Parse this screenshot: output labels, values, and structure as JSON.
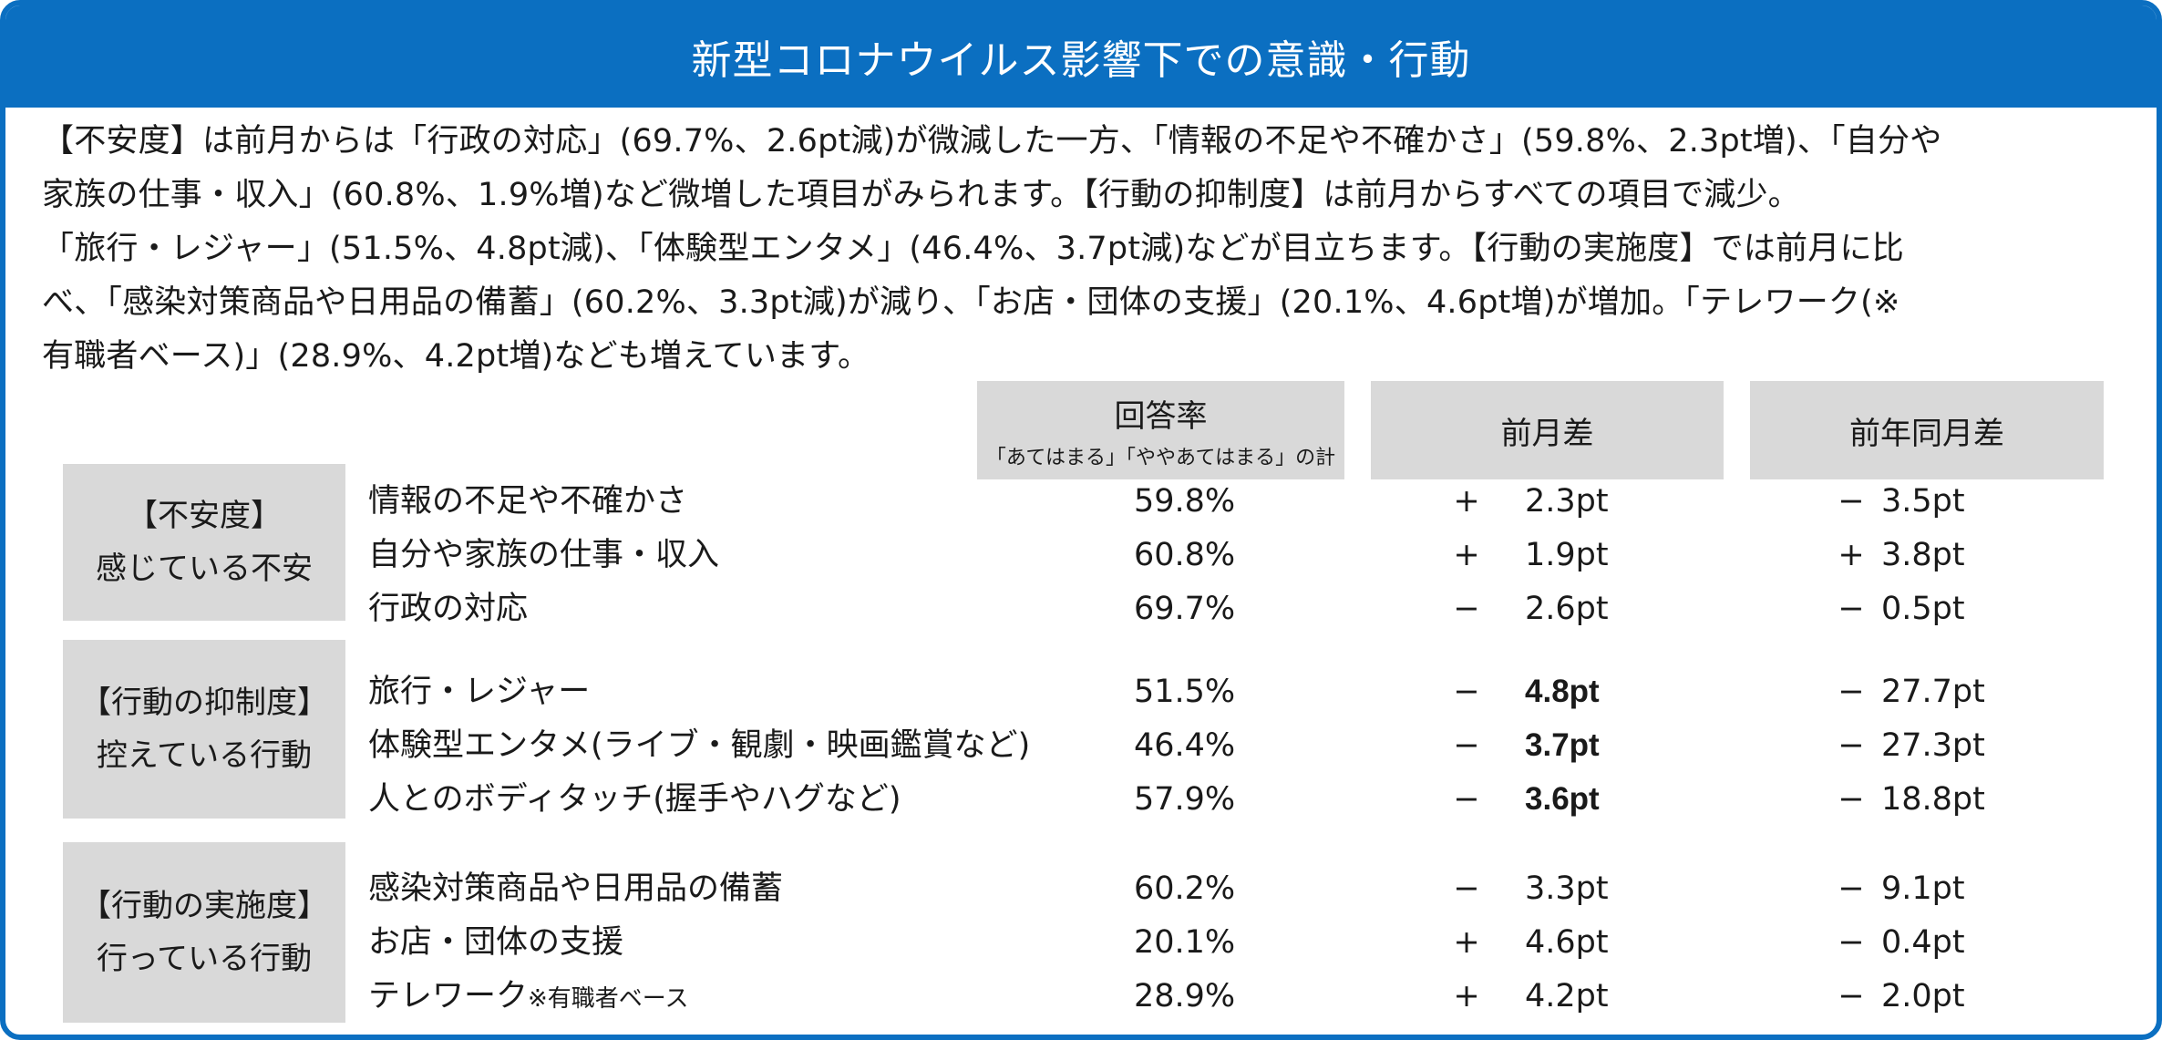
{
  "title": "新型コロナウイルス影響下での意識・行動",
  "summary": "【不安度】は前月からは「行政の対応」(69.7%、2.6pt減)が微減した一方、「情報の不足や不確かさ」(59.8%、2.3pt増)、「自分や\n家族の仕事・収入」(60.8%、1.9%増)など微増した項目がみられます。【行動の抑制度】は前月からすべての項目で減少。\n「旅行・レジャー」(51.5%、4.8pt減)、「体験型エンタメ」(46.4%、3.7pt減)などが目立ちます。【行動の実施度】では前月に比\nべ、「感染対策商品や日用品の備蓄」(60.2%、3.3pt減)が減り、「お店・団体の支援」(20.1%、4.6pt増)が増加。「テレワーク(※\n有職者ベース)」(28.9%、4.2pt増)なども増えています。",
  "columns": {
    "rate": "回答率",
    "rate_sub": "「あてはまる」「ややあてはまる」の計",
    "mom": "前月差",
    "yoy": "前年同月差"
  },
  "categories": [
    {
      "name": "【不安度】",
      "desc": "感じている不安",
      "items": [
        {
          "label": "情報の不足や不確かさ",
          "note": "",
          "rate": "59.8%",
          "mom_sign": "+",
          "mom": "2.3pt",
          "mom_bold": false,
          "yoy_sign": "−",
          "yoy": "3.5pt"
        },
        {
          "label": "自分や家族の仕事・収入",
          "note": "",
          "rate": "60.8%",
          "mom_sign": "+",
          "mom": "1.9pt",
          "mom_bold": false,
          "yoy_sign": "+",
          "yoy": "3.8pt"
        },
        {
          "label": "行政の対応",
          "note": "",
          "rate": "69.7%",
          "mom_sign": "−",
          "mom": "2.6pt",
          "mom_bold": false,
          "yoy_sign": "−",
          "yoy": "0.5pt"
        }
      ]
    },
    {
      "name": "【行動の抑制度】",
      "desc": "控えている行動",
      "items": [
        {
          "label": "旅行・レジャー",
          "note": "",
          "rate": "51.5%",
          "mom_sign": "−",
          "mom": "4.8pt",
          "mom_bold": true,
          "yoy_sign": "−",
          "yoy": "27.7pt"
        },
        {
          "label": "体験型エンタメ(ライブ・観劇・映画鑑賞など)",
          "note": "",
          "rate": "46.4%",
          "mom_sign": "−",
          "mom": "3.7pt",
          "mom_bold": true,
          "yoy_sign": "−",
          "yoy": "27.3pt"
        },
        {
          "label": "人とのボディタッチ(握手やハグなど)",
          "note": "",
          "rate": "57.9%",
          "mom_sign": "−",
          "mom": "3.6pt",
          "mom_bold": true,
          "yoy_sign": "−",
          "yoy": "18.8pt"
        }
      ]
    },
    {
      "name": "【行動の実施度】",
      "desc": "行っている行動",
      "items": [
        {
          "label": "感染対策商品や日用品の備蓄",
          "note": "",
          "rate": "60.2%",
          "mom_sign": "−",
          "mom": "3.3pt",
          "mom_bold": false,
          "yoy_sign": "−",
          "yoy": "9.1pt"
        },
        {
          "label": "お店・団体の支援",
          "note": "",
          "rate": "20.1%",
          "mom_sign": "+",
          "mom": "4.6pt",
          "mom_bold": false,
          "yoy_sign": "−",
          "yoy": "0.4pt"
        },
        {
          "label": "テレワーク",
          "note": "※有職者ベース",
          "rate": "28.9%",
          "mom_sign": "+",
          "mom": "4.2pt",
          "mom_bold": false,
          "yoy_sign": "−",
          "yoy": "2.0pt"
        }
      ]
    }
  ],
  "colors": {
    "accent": "#0b6fc1",
    "header_bg": "#d9d9d9",
    "text": "#1a1a1a"
  }
}
